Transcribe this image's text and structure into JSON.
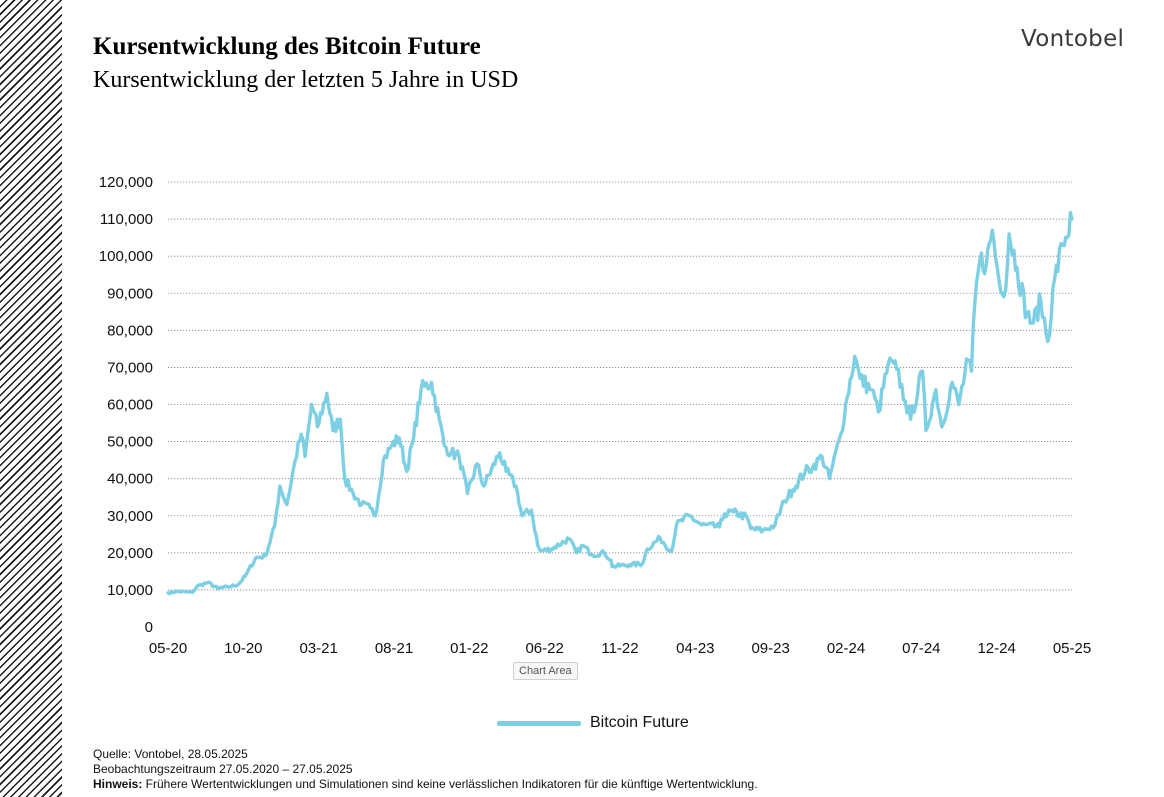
{
  "header": {
    "title": "Kursentwicklung des Bitcoin Future",
    "subtitle": "Kursentwicklung der letzten 5 Jahre in USD",
    "logo": "Vontobel"
  },
  "chart_area_label": "Chart Area",
  "footer": {
    "source": "Quelle: Vontobel, 28.05.2025",
    "period": "Beobachtungszeitraum  27.05.2020 – 27.05.2025",
    "note_label": "Hinweis:",
    "note_text": " Frühere Wertentwicklungen und Simulationen sind keine verlässlichen Indikatoren für die künftige Wertentwicklung."
  },
  "chart_data": {
    "type": "line",
    "title": "Kursentwicklung des Bitcoin Future",
    "subtitle": "Kursentwicklung der letzten 5 Jahre in USD",
    "xlabel": "",
    "ylabel": "",
    "ylim": [
      0,
      120000
    ],
    "y_ticks": [
      0,
      10000,
      20000,
      30000,
      40000,
      50000,
      60000,
      70000,
      80000,
      90000,
      100000,
      110000,
      120000
    ],
    "y_tick_labels": [
      "0",
      "10,000",
      "20,000",
      "30,000",
      "40,000",
      "50,000",
      "60,000",
      "70,000",
      "80,000",
      "90,000",
      "100,000",
      "110,000",
      "120,000"
    ],
    "x_tick_labels": [
      "05-20",
      "10-20",
      "03-21",
      "08-21",
      "01-22",
      "06-22",
      "11-22",
      "04-23",
      "09-23",
      "02-24",
      "07-24",
      "12-24",
      "05-25"
    ],
    "grid": "horizontal dotted",
    "legend_position": "bottom",
    "colors": {
      "line": "#7dd0e3",
      "grid": "#808080"
    },
    "series": [
      {
        "name": "Bitcoin Future",
        "x": [
          "2020-05-27",
          "2020-06-15",
          "2020-07-15",
          "2020-07-25",
          "2020-08-15",
          "2020-09-05",
          "2020-09-25",
          "2020-10-15",
          "2020-10-30",
          "2020-11-20",
          "2020-12-10",
          "2020-12-28",
          "2021-01-08",
          "2021-01-22",
          "2021-02-08",
          "2021-02-20",
          "2021-02-28",
          "2021-03-13",
          "2021-03-25",
          "2021-04-13",
          "2021-04-25",
          "2021-05-10",
          "2021-05-19",
          "2021-06-05",
          "2021-06-22",
          "2021-07-10",
          "2021-07-20",
          "2021-08-05",
          "2021-08-22",
          "2021-09-06",
          "2021-09-21",
          "2021-10-05",
          "2021-10-20",
          "2021-11-10",
          "2021-11-26",
          "2021-12-06",
          "2021-12-20",
          "2022-01-05",
          "2022-01-22",
          "2022-02-10",
          "2022-02-24",
          "2022-03-28",
          "2022-04-10",
          "2022-04-30",
          "2022-05-12",
          "2022-05-31",
          "2022-06-13",
          "2022-06-18",
          "2022-07-10",
          "2022-08-15",
          "2022-08-30",
          "2022-09-12",
          "2022-10-01",
          "2022-10-25",
          "2022-11-08",
          "2022-11-10",
          "2022-12-15",
          "2023-01-10",
          "2023-01-20",
          "2023-02-15",
          "2023-03-10",
          "2023-03-20",
          "2023-04-14",
          "2023-05-10",
          "2023-06-15",
          "2023-06-25",
          "2023-07-13",
          "2023-08-10",
          "2023-08-17",
          "2023-09-11",
          "2023-10-05",
          "2023-10-24",
          "2023-11-10",
          "2023-12-05",
          "2023-12-20",
          "2024-01-08",
          "2024-01-23",
          "2024-02-15",
          "2024-02-28",
          "2024-03-14",
          "2024-03-25",
          "2024-04-17",
          "2024-05-01",
          "2024-05-21",
          "2024-06-07",
          "2024-06-24",
          "2024-07-05",
          "2024-07-29",
          "2024-08-05",
          "2024-08-25",
          "2024-09-06",
          "2024-09-27",
          "2024-10-10",
          "2024-10-29",
          "2024-11-05",
          "2024-11-12",
          "2024-11-22",
          "2024-12-05",
          "2024-12-17",
          "2024-12-30",
          "2025-01-13",
          "2025-01-20",
          "2025-02-05",
          "2025-02-25",
          "2025-03-10",
          "2025-03-25",
          "2025-04-08",
          "2025-04-22",
          "2025-05-08",
          "2025-05-27"
        ],
        "values": [
          9200,
          9600,
          9300,
          11000,
          12000,
          10400,
          10800,
          11400,
          13700,
          18600,
          19200,
          27000,
          38000,
          33000,
          45000,
          52000,
          46000,
          60000,
          54000,
          63000,
          53000,
          56000,
          40000,
          36000,
          33000,
          32000,
          30000,
          45000,
          49000,
          51000,
          42000,
          51000,
          64000,
          66000,
          56000,
          49000,
          47000,
          46000,
          36000,
          44000,
          38000,
          47000,
          42000,
          38000,
          30000,
          31500,
          22000,
          20500,
          21000,
          23800,
          20000,
          22000,
          19500,
          20000,
          18000,
          16300,
          16800,
          17000,
          21000,
          24000,
          20300,
          27500,
          30000,
          27500,
          27000,
          30500,
          31000,
          29500,
          26500,
          26000,
          27500,
          34000,
          37000,
          42000,
          43000,
          46000,
          40000,
          52000,
          62000,
          73000,
          67000,
          64000,
          58000,
          71000,
          69500,
          61000,
          56000,
          69000,
          53000,
          64000,
          54000,
          66000,
          60000,
          72000,
          69000,
          88000,
          99000,
          98000,
          107000,
          94000,
          91000,
          106000,
          97000,
          84000,
          82000,
          88000,
          77000,
          94000,
          103000,
          110000
        ]
      }
    ]
  }
}
